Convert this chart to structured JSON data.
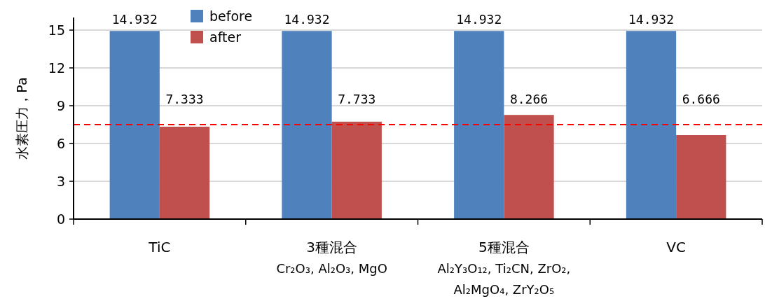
{
  "chart_data": {
    "type": "bar",
    "ylabel": "水素圧力，Pa",
    "categories": [
      "TiC",
      "3種混合\nCr₂O₃, Al₂O₃, MgO",
      "5種混合\nAl₂Y₃O₁₂, Ti₂CN, ZrO₂,\nAl₂MgO₄, ZrY₂O₅",
      "VC"
    ],
    "series": [
      {
        "name": "before",
        "color": "#4f81bd",
        "values": [
          14.932,
          14.932,
          14.932,
          14.932
        ]
      },
      {
        "name": "after",
        "color": "#c0504d",
        "values": [
          7.333,
          7.733,
          8.266,
          6.666
        ]
      }
    ],
    "ylim": [
      0,
      16
    ],
    "yticks": [
      0,
      3,
      6,
      9,
      12,
      15
    ],
    "grid": "y",
    "legend": "top",
    "data_labels": true,
    "ref_lines": [
      {
        "axis": "y",
        "value": 7.5,
        "color": "#ff0000",
        "line_style": "dashed"
      }
    ]
  }
}
